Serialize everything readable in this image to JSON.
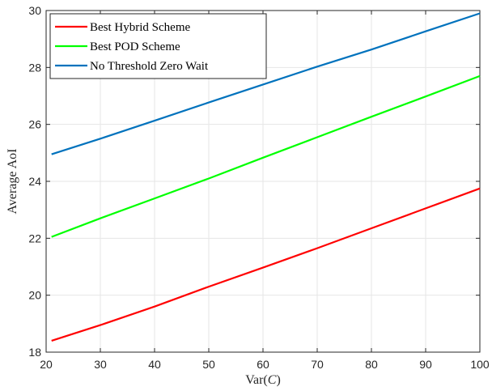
{
  "chart_data": {
    "type": "line",
    "title": "",
    "xlabel": "Var(C)",
    "xlabel_parts": {
      "prefix": "Var(",
      "var": "C",
      "suffix": ")"
    },
    "ylabel": "Average AoI",
    "xlim": [
      20,
      100
    ],
    "ylim": [
      18,
      30
    ],
    "xticks": [
      "20",
      "30",
      "40",
      "50",
      "60",
      "70",
      "80",
      "90",
      "100"
    ],
    "yticks": [
      "18",
      "20",
      "22",
      "24",
      "26",
      "28",
      "30"
    ],
    "grid": true,
    "legend_position": "top-left",
    "series": [
      {
        "name": "Best Hybrid Scheme",
        "color": "#ff0000",
        "x": [
          21,
          30,
          40,
          50,
          60,
          70,
          80,
          90,
          100
        ],
        "y": [
          18.4,
          18.95,
          19.6,
          20.3,
          20.97,
          21.65,
          22.35,
          23.05,
          23.75
        ]
      },
      {
        "name": "Best POD Scheme",
        "color": "#00ff00",
        "x": [
          21,
          30,
          40,
          50,
          60,
          70,
          80,
          90,
          100
        ],
        "y": [
          22.05,
          22.7,
          23.4,
          24.1,
          24.83,
          25.55,
          26.27,
          26.98,
          27.7
        ]
      },
      {
        "name": "No Threshold Zero Wait",
        "color": "#0072bd",
        "x": [
          21,
          30,
          40,
          50,
          60,
          70,
          80,
          90,
          100
        ],
        "y": [
          24.95,
          25.5,
          26.13,
          26.77,
          27.4,
          28.03,
          28.63,
          29.27,
          29.9
        ]
      }
    ]
  }
}
